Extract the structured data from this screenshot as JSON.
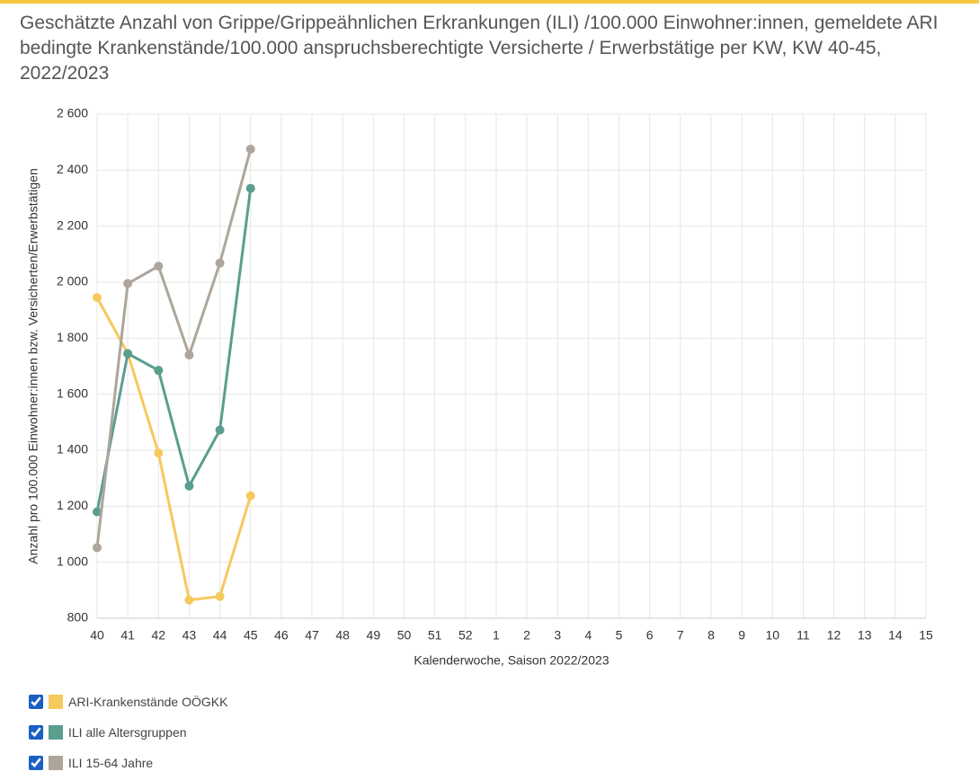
{
  "chart_data": {
    "type": "line",
    "title": "Geschätzte Anzahl von Grippe/Grippeähnlichen Erkrankungen (ILI) /100.000 Einwohner:innen, gemeldete ARI bedingte Krankenstände/100.000 anspruchsberechtigte Versicherte / Erwerbstätige per KW, KW 40-45, 2022/2023",
    "x_label": "Kalenderwoche, Saison 2022/2023",
    "y_label": "Anzahl pro 100.000 Einwohner:innen bzw. Versicherten/Erwerbstätigen",
    "categories": [
      "40",
      "41",
      "42",
      "43",
      "44",
      "45",
      "46",
      "47",
      "48",
      "49",
      "50",
      "51",
      "52",
      "1",
      "2",
      "3",
      "4",
      "5",
      "6",
      "7",
      "8",
      "9",
      "10",
      "11",
      "12",
      "13",
      "14",
      "15"
    ],
    "series": [
      {
        "name": "ARI-Krankenstände OÖGKK",
        "color": "#f5c95c",
        "values": [
          1945,
          1745,
          1390,
          865,
          878,
          1237,
          null,
          null,
          null,
          null,
          null,
          null,
          null,
          null,
          null,
          null,
          null,
          null,
          null,
          null,
          null,
          null,
          null,
          null,
          null,
          null,
          null,
          null
        ]
      },
      {
        "name": "ILI alle Altersgruppen",
        "color": "#5a9e8e",
        "values": [
          1180,
          1745,
          1685,
          1272,
          1472,
          2335,
          null,
          null,
          null,
          null,
          null,
          null,
          null,
          null,
          null,
          null,
          null,
          null,
          null,
          null,
          null,
          null,
          null,
          null,
          null,
          null,
          null,
          null
        ]
      },
      {
        "name": "ILI 15-64 Jahre",
        "color": "#aea59b",
        "values": [
          1052,
          1995,
          2057,
          1740,
          2068,
          2475,
          null,
          null,
          null,
          null,
          null,
          null,
          null,
          null,
          null,
          null,
          null,
          null,
          null,
          null,
          null,
          null,
          null,
          null,
          null,
          null,
          null,
          null
        ]
      }
    ],
    "ylim": [
      800,
      2600
    ],
    "yticks": [
      800,
      {
        "value": 1000,
        "label": "1 000"
      },
      {
        "value": 1200,
        "label": "1 200"
      },
      {
        "value": 1400,
        "label": "1 400"
      },
      {
        "value": 1600,
        "label": "1 600"
      },
      {
        "value": 1800,
        "label": "1 800"
      },
      {
        "value": 2000,
        "label": "2 000"
      },
      {
        "value": 2200,
        "label": "2 200"
      },
      {
        "value": 2400,
        "label": "2 400"
      },
      {
        "value": 2600,
        "label": "2 600"
      }
    ],
    "grid": true,
    "legend": "bottom-left"
  }
}
